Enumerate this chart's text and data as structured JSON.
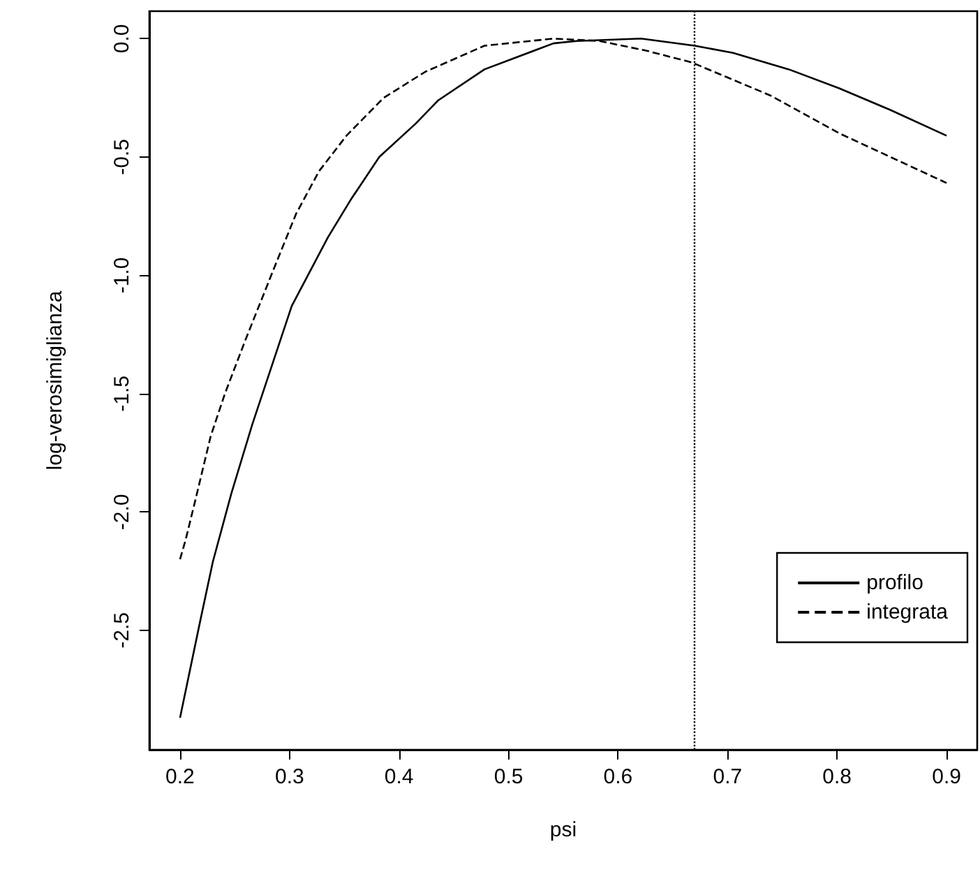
{
  "chart_data": {
    "type": "line",
    "xlabel": "psi",
    "ylabel": "log-verosimiglianza",
    "xlim": [
      0.172,
      0.928
    ],
    "ylim": [
      -3.005,
      0.116
    ],
    "xticks": [
      0.2,
      0.3,
      0.4,
      0.5,
      0.6,
      0.7,
      0.8,
      0.9
    ],
    "yticks": [
      {
        "value": -2.5,
        "label": "-2.5"
      },
      {
        "value": -2,
        "label": "-2.0"
      },
      {
        "value": -1.5,
        "label": "-1.5"
      },
      {
        "value": -1,
        "label": "-1.0"
      },
      {
        "value": -0.5,
        "label": "-0.5"
      },
      {
        "value": 0,
        "label": "0.0"
      }
    ],
    "grid": false,
    "legend": "bottom right",
    "marker": "none",
    "ref_lines": [
      {
        "axis": "x",
        "value": 0.67,
        "color": "#000000",
        "line_style": "dotted"
      }
    ],
    "series": [
      {
        "name": "profilo",
        "color": "#000000",
        "line_style": "solid",
        "x": [
          0.2,
          0.218,
          0.23,
          0.247,
          0.266,
          0.302,
          0.335,
          0.356,
          0.382,
          0.415,
          0.436,
          0.478,
          0.541,
          0.562,
          0.621,
          0.67,
          0.705,
          0.756,
          0.802,
          0.848,
          0.9
        ],
        "values": [
          -2.87,
          -2.47,
          -2.21,
          -1.92,
          -1.63,
          -1.13,
          -0.84,
          -0.68,
          -0.5,
          -0.36,
          -0.26,
          -0.13,
          -0.02,
          -0.01,
          0,
          -0.03,
          -0.06,
          -0.13,
          -0.21,
          -0.3,
          -0.41
        ]
      },
      {
        "name": "integrata",
        "color": "#000000",
        "line_style": "dashed",
        "x": [
          0.2,
          0.205,
          0.214,
          0.228,
          0.241,
          0.26,
          0.285,
          0.306,
          0.327,
          0.352,
          0.386,
          0.424,
          0.478,
          0.541,
          0.583,
          0.625,
          0.667,
          0.739,
          0.802,
          0.9
        ],
        "values": [
          -2.2,
          -2.12,
          -1.95,
          -1.68,
          -1.5,
          -1.27,
          -0.98,
          -0.74,
          -0.56,
          -0.41,
          -0.25,
          -0.14,
          -0.03,
          0,
          -0.01,
          -0.05,
          -0.1,
          -0.24,
          -0.4,
          -0.61
        ]
      }
    ]
  }
}
